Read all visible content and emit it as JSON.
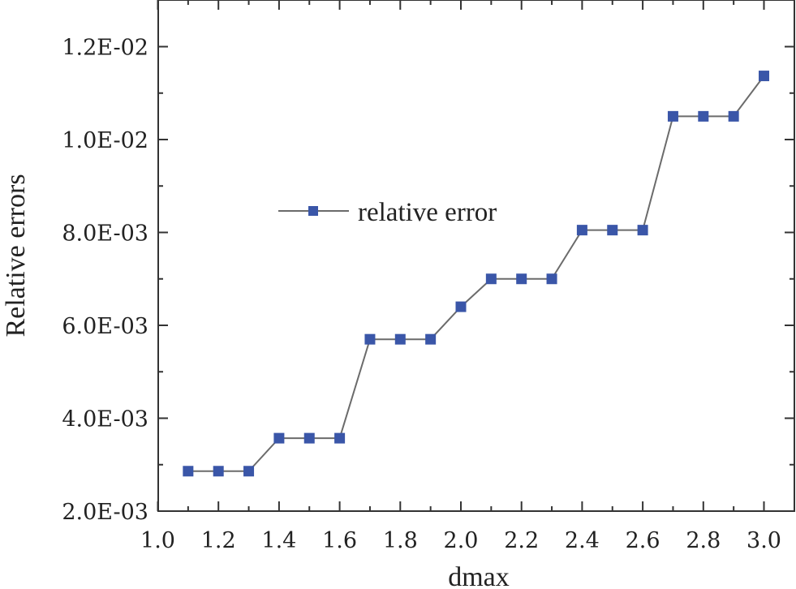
{
  "chart_data": {
    "type": "line",
    "title": "",
    "xlabel": "dmax",
    "ylabel": "Relative errors",
    "xlim": [
      1.0,
      3.0
    ],
    "ylim": [
      0.002,
      0.013
    ],
    "x_ticks": [
      1.0,
      1.2,
      1.4,
      1.6,
      1.8,
      2.0,
      2.2,
      2.4,
      2.6,
      2.8,
      3.0
    ],
    "x_tick_labels": [
      "1.0",
      "1.2",
      "1.4",
      "1.6",
      "1.8",
      "2.0",
      "2.2",
      "2.4",
      "2.6",
      "2.8",
      "3.0"
    ],
    "y_ticks": [
      0.002,
      0.004,
      0.006,
      0.008,
      0.01,
      0.012
    ],
    "y_tick_labels": [
      "2.0E-03",
      "4.0E-03",
      "6.0E-03",
      "8.0E-03",
      "1.0E-02",
      "1.2E-02"
    ],
    "grid": false,
    "legend_position": "upper-left-center",
    "series": [
      {
        "name": "relative error",
        "line_color": "#6b6b6b",
        "marker_color": "#3a56a8",
        "marker": "square",
        "x": [
          1.1,
          1.2,
          1.3,
          1.4,
          1.5,
          1.6,
          1.7,
          1.8,
          1.9,
          2.0,
          2.1,
          2.2,
          2.3,
          2.4,
          2.5,
          2.6,
          2.7,
          2.8,
          2.9,
          3.0
        ],
        "y": [
          0.00286,
          0.00286,
          0.00286,
          0.00357,
          0.00357,
          0.00357,
          0.0057,
          0.0057,
          0.0057,
          0.0064,
          0.007,
          0.007,
          0.007,
          0.00805,
          0.00805,
          0.00805,
          0.0105,
          0.0105,
          0.0105,
          0.01137
        ]
      }
    ]
  }
}
